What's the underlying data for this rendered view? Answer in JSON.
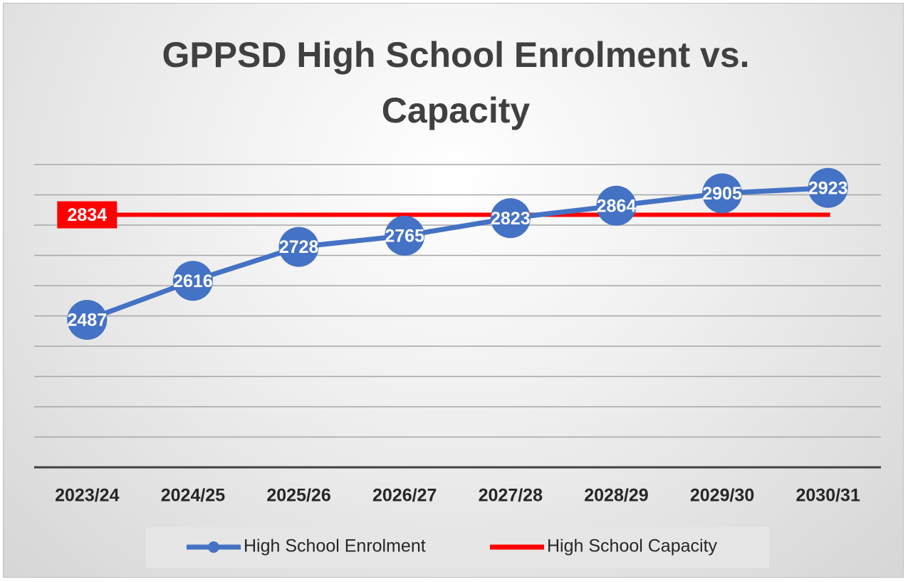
{
  "chart_data": {
    "type": "line",
    "title": "GPPSD High School Enrolment vs. Capacity",
    "categories": [
      "2023/24",
      "2024/25",
      "2025/26",
      "2026/27",
      "2027/28",
      "2028/29",
      "2029/30",
      "2030/31"
    ],
    "series": [
      {
        "name": "High School Enrolment",
        "color": "#4472c4",
        "values": [
          2487,
          2616,
          2728,
          2765,
          2823,
          2864,
          2905,
          2923
        ]
      },
      {
        "name": "High School Capacity",
        "color": "#ff0000",
        "values": [
          2834,
          2834,
          2834,
          2834,
          2834,
          2834,
          2834,
          2834
        ]
      }
    ],
    "ylim": [
      2000,
      3000
    ],
    "yticks": [
      2000,
      2100,
      2200,
      2300,
      2400,
      2500,
      2600,
      2700,
      2800,
      2900,
      3000
    ],
    "grid": true
  }
}
